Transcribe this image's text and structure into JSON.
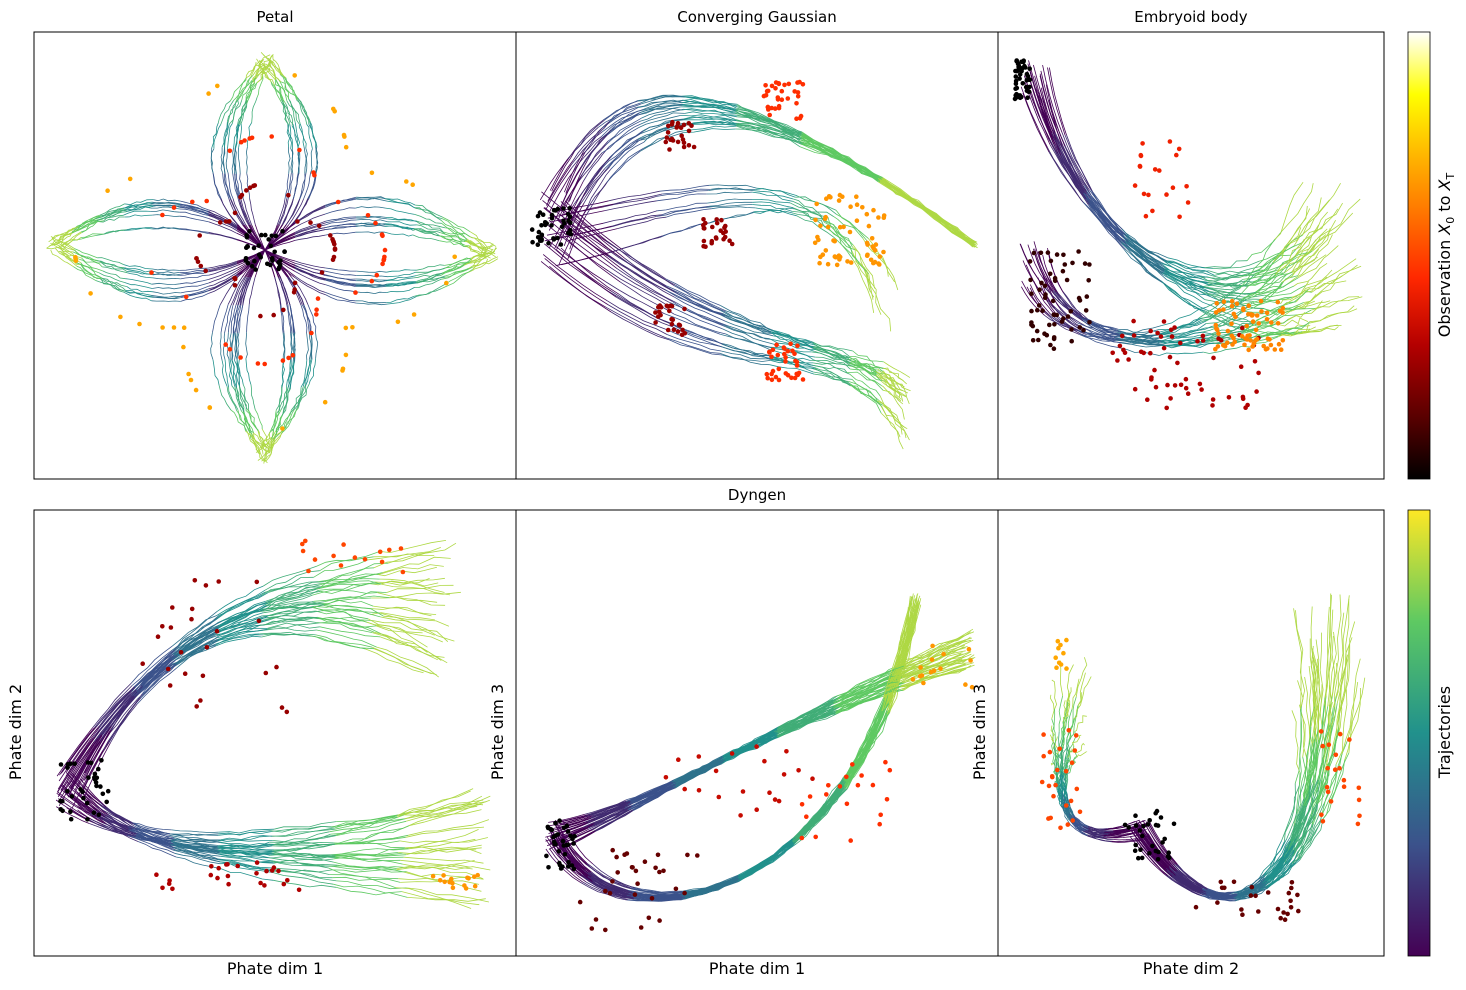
{
  "figure": {
    "row1_titles": [
      "Petal",
      "Converging Gaussian",
      "Embryoid body"
    ],
    "row2_title": "Dyngen",
    "row2_xlabels": [
      "Phate dim 1",
      "Phate dim 1",
      "Phate dim 2"
    ],
    "row2_ylabels": [
      "Phate dim 2",
      "Phate dim 3",
      "Phate dim 3"
    ],
    "colorbar_observation_label_prefix": "Observation ",
    "colorbar_observation_label_x0": "X",
    "colorbar_observation_label_sub0": "0",
    "colorbar_observation_label_mid": " to ",
    "colorbar_observation_label_xt": "X",
    "colorbar_observation_label_subt": "T",
    "colorbar_trajectories_label": "Trajectories"
  },
  "colors": {
    "observation_colormap": [
      "#000000",
      "#5a0000",
      "#b40000",
      "#ff2800",
      "#ff7800",
      "#ffb400",
      "#ffff00",
      "#ffffff"
    ],
    "trajectory_colormap": [
      "#440154",
      "#3b528b",
      "#21918c",
      "#5ec962",
      "#fde725"
    ]
  },
  "chart_data": [
    {
      "type": "scatter",
      "title": "Petal",
      "description_kind": "trajectories_with_observations",
      "observation_times": [
        0,
        0.25,
        0.5,
        0.75,
        1.0
      ],
      "petal_directions": [
        "up",
        "right",
        "down",
        "left"
      ],
      "xlabel": "",
      "ylabel": "",
      "ticks": "none"
    },
    {
      "type": "scatter",
      "title": "Converging Gaussian",
      "description_kind": "trajectories_with_observations",
      "observation_times": [
        0,
        0.25,
        0.5,
        0.75,
        1.0
      ],
      "xlabel": "",
      "ylabel": "",
      "ticks": "none"
    },
    {
      "type": "scatter",
      "title": "Embryoid body",
      "description_kind": "trajectories_with_observations",
      "observation_times": [
        0,
        0.25,
        0.5,
        0.75,
        1.0
      ],
      "xlabel": "",
      "ylabel": "",
      "ticks": "none"
    },
    {
      "type": "scatter",
      "title": "Dyngen",
      "description_kind": "trajectories_with_observations",
      "xlabel": "Phate dim 1",
      "ylabel": "Phate dim 2",
      "ticks": "none"
    },
    {
      "type": "scatter",
      "title": "Dyngen",
      "description_kind": "trajectories_with_observations",
      "xlabel": "Phate dim 1",
      "ylabel": "Phate dim 3",
      "ticks": "none"
    },
    {
      "type": "scatter",
      "title": "Dyngen",
      "description_kind": "trajectories_with_observations",
      "xlabel": "Phate dim 2",
      "ylabel": "Phate dim 3",
      "ticks": "none"
    }
  ]
}
